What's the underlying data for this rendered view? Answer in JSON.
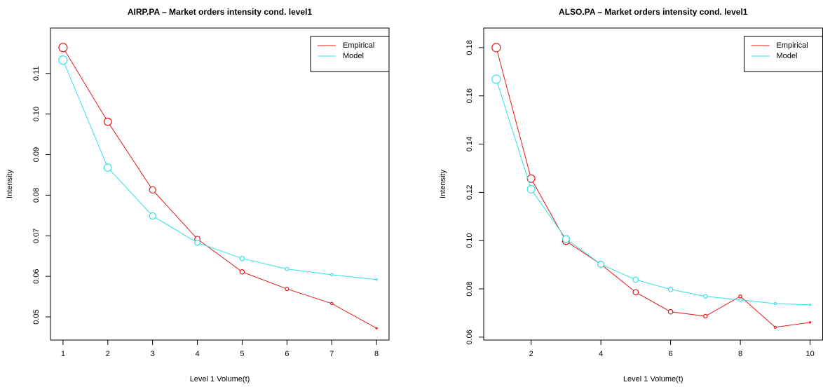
{
  "chart_data": [
    {
      "type": "line",
      "title": "AIRP.PA  – Market orders intensity cond. level1",
      "x_label": "Level 1  Volume(t)",
      "y_label": "Intensity",
      "x": [
        1,
        2,
        3,
        4,
        5,
        6,
        7,
        8
      ],
      "series": [
        {
          "name": "Empirical",
          "color": "#e31a1c",
          "values": [
            0.1164,
            0.0981,
            0.0813,
            0.0692,
            0.0611,
            0.0569,
            0.0533,
            0.0472
          ]
        },
        {
          "name": "Model",
          "color": "#33e0e8",
          "values": [
            0.1133,
            0.0868,
            0.0749,
            0.0683,
            0.0644,
            0.0618,
            0.0604,
            0.0592
          ]
        }
      ],
      "xlim": [
        0.72,
        8.28
      ],
      "xticks": [
        1,
        2,
        3,
        4,
        5,
        6,
        7,
        8
      ],
      "ylim": [
        0.0443,
        0.1212
      ],
      "yticks": [
        0.05,
        0.06,
        0.07,
        0.08,
        0.09,
        {
          "value": 0.1,
          "label": "0.10"
        },
        0.11
      ],
      "legend": "top-right"
    },
    {
      "type": "line",
      "title": "ALSO.PA  – Market orders intensity cond. level1",
      "x_label": "Level 1  Volume(t)",
      "y_label": "Intensity",
      "x": [
        1,
        2,
        3,
        4,
        5,
        6,
        7,
        8,
        9,
        10
      ],
      "series": [
        {
          "name": "Empirical",
          "color": "#e31a1c",
          "values": [
            0.18,
            0.1257,
            0.0998,
            0.0902,
            0.0786,
            0.0705,
            0.0687,
            0.0769,
            0.0641,
            0.0661
          ]
        },
        {
          "name": "Model",
          "color": "#33e0e8",
          "values": [
            0.1669,
            0.1213,
            0.1007,
            0.0902,
            0.0838,
            0.0798,
            0.0769,
            0.0754,
            0.0739,
            0.0734
          ]
        }
      ],
      "xlim": [
        0.64,
        10.36
      ],
      "xticks": [
        2,
        4,
        6,
        8,
        10
      ],
      "ylim": [
        0.0588,
        0.1881
      ],
      "yticks": [
        0.06,
        0.08,
        {
          "value": 0.1,
          "label": "0.10"
        },
        0.12,
        0.14,
        0.16,
        0.18
      ],
      "legend": "top-right"
    }
  ]
}
